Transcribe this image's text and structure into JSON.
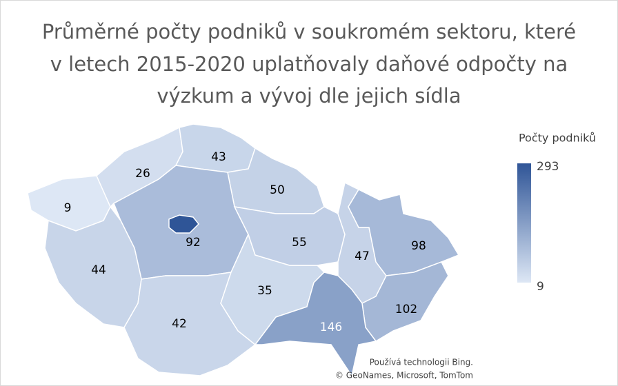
{
  "map": {
    "title": [
      "Průměrné počty podniků v soukromém sektoru, které",
      "v letech 2015-2020 uplatňovaly daňové odpočty na",
      "výzkum a vývoj dle jejich sídla"
    ],
    "legend": {
      "title": "Počty podniků",
      "min": 9,
      "max": 293,
      "color_min": "#dde7f5",
      "color_max": "#2f5597"
    },
    "regions": [
      9,
      26,
      43,
      50,
      92,
      44,
      42,
      35,
      55,
      47,
      98,
      102,
      146
    ],
    "attribution": [
      "Používá technologii Bing.",
      "© GeoNames, Microsoft, TomTom"
    ]
  }
}
